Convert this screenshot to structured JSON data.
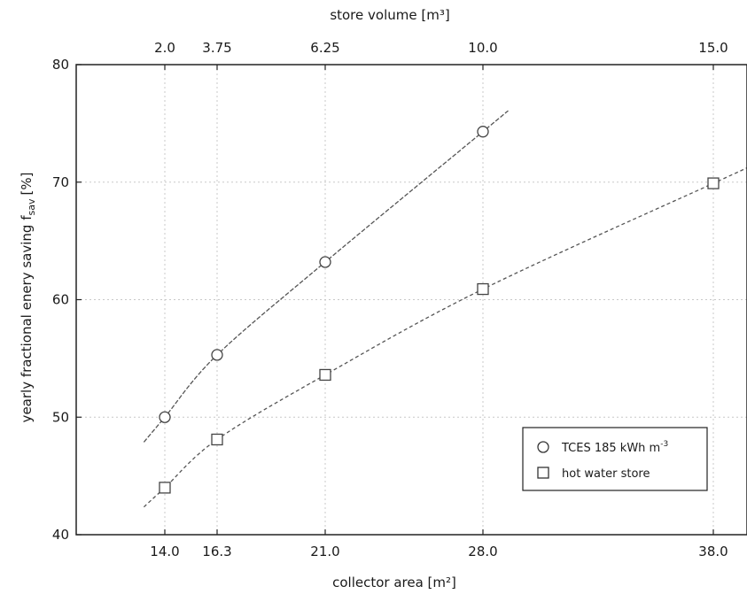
{
  "chart_data": {
    "type": "line",
    "x_top_label": "store volume [m³]",
    "x_top_ticks": [
      "2.0",
      "3.75",
      "6.25",
      "10.0",
      "15.0"
    ],
    "xlabel": "collector area [m²]",
    "x_ticks": [
      "14.0",
      "16.3",
      "21.0",
      "28.0",
      "38.0"
    ],
    "ylabel": "yearly fractional enery saving f_sav [%]",
    "ylabel_main": "yearly fractional enery saving f",
    "ylabel_sub": "sav",
    "ylabel_unit": "[%]",
    "ylim": [
      40,
      80
    ],
    "y_ticks": [
      "40",
      "50",
      "60",
      "70",
      "80"
    ],
    "grid": true,
    "legend_position": "bottom-right",
    "series": [
      {
        "name": "TCES 185 kWh m⁻³",
        "name_main": "TCES 185 kWh m",
        "name_sup": "-3",
        "marker": "circle",
        "x": [
          14.0,
          16.3,
          21.0,
          28.0
        ],
        "y": [
          50.0,
          55.3,
          63.2,
          74.3
        ]
      },
      {
        "name": "hot water store",
        "marker": "square",
        "x": [
          14.0,
          16.3,
          21.0,
          28.0,
          38.0
        ],
        "y": [
          44.0,
          48.1,
          53.6,
          60.9,
          69.9
        ]
      }
    ]
  }
}
